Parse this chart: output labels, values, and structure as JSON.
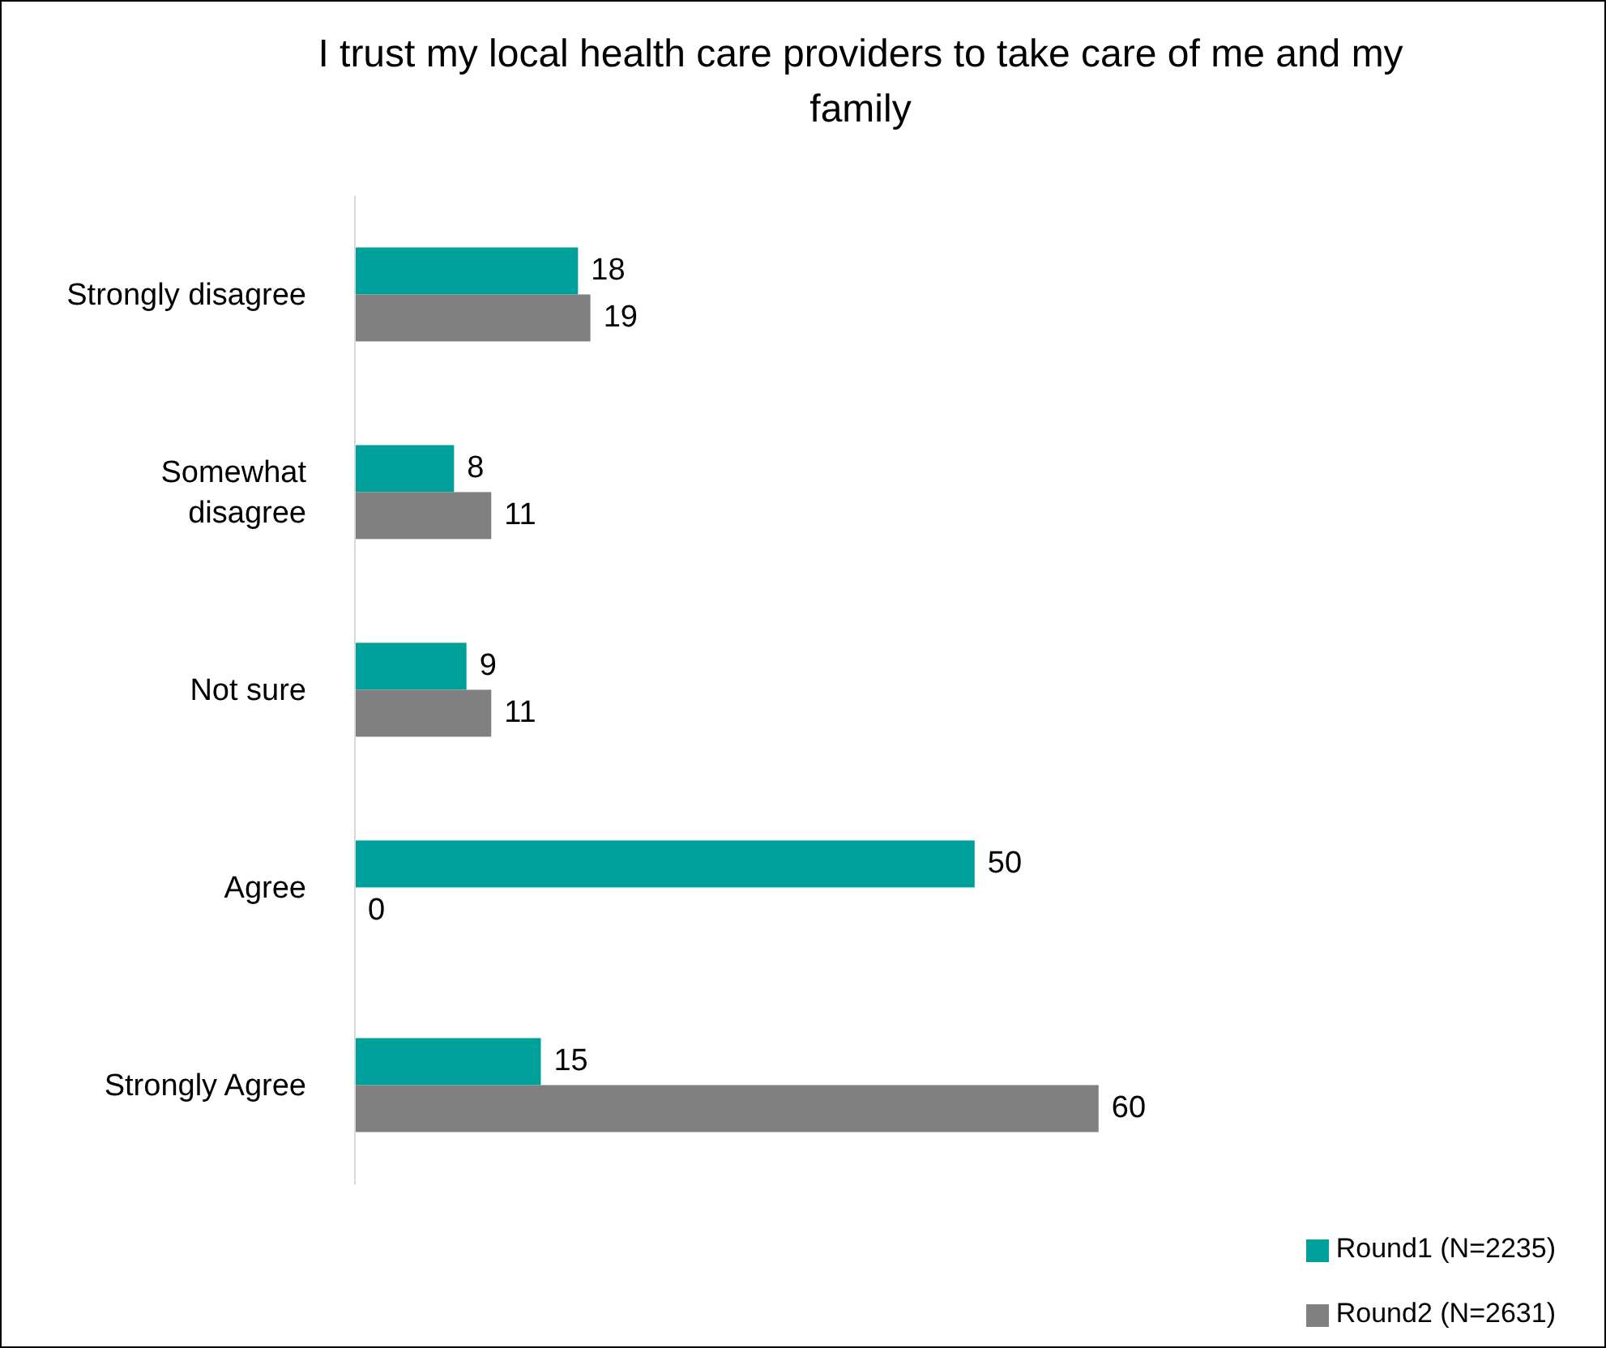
{
  "chart_data": {
    "type": "bar",
    "orientation": "horizontal",
    "title": "I trust my local health care providers to take care of me and my family",
    "categories": [
      "Strongly disagree",
      "Somewhat disagree",
      "Not sure",
      "Agree",
      "Strongly Agree"
    ],
    "series": [
      {
        "name": "Round1 (N=2235)",
        "color": "#00a09a",
        "values": [
          18,
          8,
          9,
          50,
          15
        ]
      },
      {
        "name": "Round2 (N=2631)",
        "color": "#808080",
        "values": [
          19,
          11,
          11,
          0,
          60
        ]
      }
    ],
    "data_labels": true,
    "legend": "bottom right",
    "grid": false
  }
}
